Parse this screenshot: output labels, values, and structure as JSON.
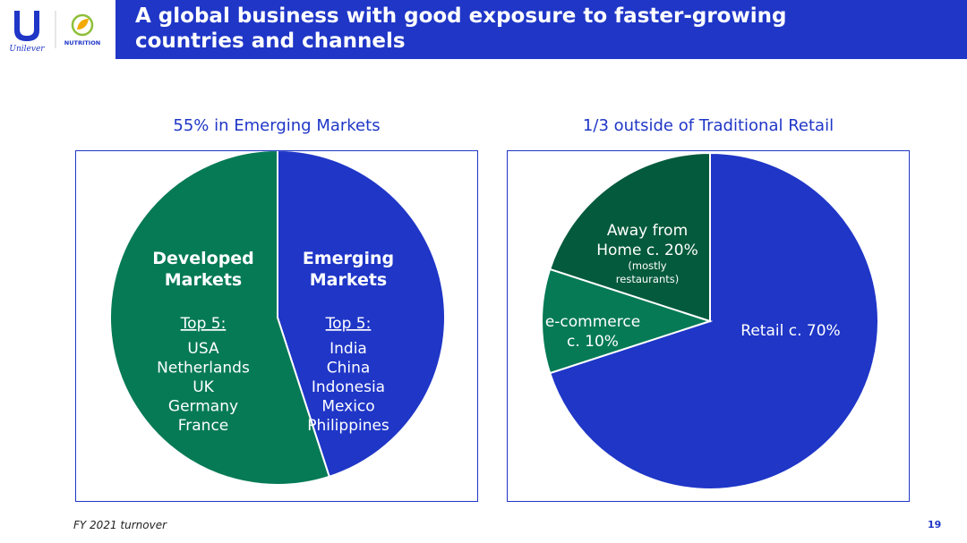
{
  "brand": {
    "company_wordmark": "Unilever",
    "division_label": "NUTRITION",
    "colors": {
      "blue": "#1f36c7",
      "green": "#057a55",
      "dark_green": "#045a3c",
      "white": "#ffffff"
    }
  },
  "header": {
    "title_line1": "A global business with good exposure to faster-growing",
    "title_line2": "countries and channels"
  },
  "chart_data": [
    {
      "type": "pie",
      "title": "55% in Emerging Markets",
      "slices": [
        {
          "label": "Developed Markets",
          "label_lines": [
            "Developed",
            "Markets"
          ],
          "value": 45,
          "color": "#1f36c7",
          "subheading": "Top 5:",
          "items": [
            "USA",
            "Netherlands",
            "UK",
            "Germany",
            "France"
          ]
        },
        {
          "label": "Emerging Markets",
          "label_lines": [
            "Emerging",
            "Markets"
          ],
          "value": 55,
          "color": "#057a55",
          "subheading": "Top 5:",
          "items": [
            "India",
            "China",
            "Indonesia",
            "Mexico",
            "Philippines"
          ]
        }
      ]
    },
    {
      "type": "pie",
      "title": "1/3 outside of Traditional Retail",
      "slices": [
        {
          "label": "Retail c. 70%",
          "label_lines": [
            "Retail c. 70%"
          ],
          "value": 70,
          "color": "#1f36c7"
        },
        {
          "label": "e-commerce c. 10%",
          "label_lines": [
            "e-commerce",
            "c. 10%"
          ],
          "value": 10,
          "color": "#057a55"
        },
        {
          "label": "Away from Home c. 20%",
          "label_lines": [
            "Away from",
            "Home c. 20%"
          ],
          "value": 20,
          "color": "#045a3c",
          "note_lines": [
            "(mostly",
            "restaurants)"
          ]
        }
      ]
    }
  ],
  "footer": {
    "note": "FY 2021 turnover",
    "page_number": "19"
  }
}
